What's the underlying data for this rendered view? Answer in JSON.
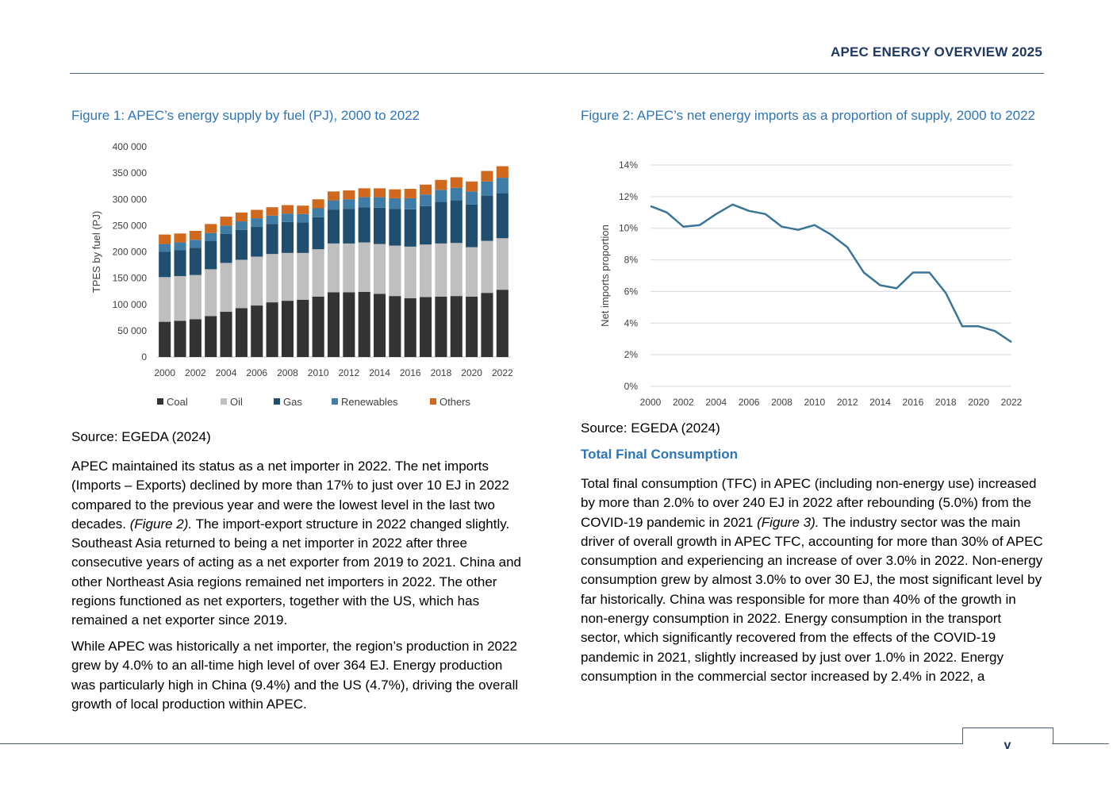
{
  "header": {
    "title": "APEC ENERGY OVERVIEW 2025"
  },
  "figure1": {
    "caption": "Figure 1: APEC’s energy supply by fuel (PJ), 2000 to 2022",
    "source": "Source: EGEDA (2024)"
  },
  "figure2": {
    "caption": "Figure 2: APEC’s net energy imports as a proportion of supply, 2000 to 2022",
    "source": "Source: EGEDA (2024)"
  },
  "left_column": {
    "paragraph1": "APEC maintained its status as a net importer in 2022. The net imports (Imports – Exports) declined by more than 17% to just over 10 EJ in 2022 compared to the previous year and were the lowest level in the last two decades.",
    "paragraph1_ref": "(Figure 2).",
    "paragraph1_rest": "The import-export structure in 2022 changed slightly. Southeast Asia returned to being a net importer in 2022 after three consecutive years of acting as a net exporter from 2019 to 2021. China and other Northeast Asia regions remained net importers in 2022. The other regions functioned as net exporters, together with the US, which has remained a net exporter since 2019.",
    "paragraph2": "While APEC was historically a net importer, the region’s production in 2022 grew by 4.0% to an all-time high level of over 364 EJ. Energy production was particularly high in China (9.4%) and the US (4.7%), driving the overall growth of local production within APEC."
  },
  "right_column": {
    "heading": "Total Final Consumption",
    "paragraph1": "Total final consumption (TFC) in APEC (including non-energy use) increased by more than 2.0% to over 240 EJ in 2022 after rebounding (5.0%) from the COVID-19 pandemic in 2021",
    "paragraph1_ref": "(Figure 3).",
    "paragraph1_rest": "The industry sector was the main driver of overall growth in APEC TFC, accounting for more than 30% of APEC consumption and experiencing an increase of over 3.0% in 2022. Non-energy consumption grew by almost 3.0% to over 30 EJ, the most significant level by far historically. China was responsible for more than 40% of the growth in non-energy consumption in 2022. Energy consumption in the transport sector, which significantly recovered from the effects of the COVID-19 pandemic in 2021, slightly increased by just over 1.0% in 2022. Energy consumption in the commercial sector increased by 2.4% in 2022, a"
  },
  "footer": {
    "page_number": "v"
  },
  "chart_data": [
    {
      "type": "bar",
      "stacked": true,
      "title": "",
      "xlabel": "",
      "ylabel": "TPES by fuel (PJ)",
      "ylim": [
        0,
        400000
      ],
      "yticks": [
        0,
        50000,
        100000,
        150000,
        200000,
        250000,
        300000,
        350000,
        400000
      ],
      "ytick_labels": [
        "0",
        "50 000",
        "100 000",
        "150 000",
        "200 000",
        "250 000",
        "300 000",
        "350 000",
        "400 000"
      ],
      "categories": [
        "2000",
        "2001",
        "2002",
        "2003",
        "2004",
        "2005",
        "2006",
        "2007",
        "2008",
        "2009",
        "2010",
        "2011",
        "2012",
        "2013",
        "2014",
        "2015",
        "2016",
        "2017",
        "2018",
        "2019",
        "2020",
        "2021",
        "2022"
      ],
      "xtick_labels": [
        "2000",
        "2002",
        "2004",
        "2006",
        "2008",
        "2010",
        "2012",
        "2014",
        "2016",
        "2018",
        "2020",
        "2022"
      ],
      "legend_position": "bottom",
      "grid": false,
      "series": [
        {
          "name": "Coal",
          "color": "#333333",
          "values": [
            67000,
            69000,
            72000,
            78000,
            86000,
            93000,
            98000,
            104000,
            107000,
            109000,
            115000,
            123000,
            123000,
            124000,
            120000,
            116000,
            112000,
            114000,
            115000,
            116000,
            115000,
            122000,
            128000
          ]
        },
        {
          "name": "Oil",
          "color": "#bfbfbf",
          "values": [
            85000,
            85000,
            84000,
            89000,
            93000,
            92000,
            93000,
            92000,
            91000,
            89000,
            90000,
            93000,
            93000,
            94000,
            95000,
            96000,
            98000,
            100000,
            101000,
            101000,
            94000,
            99000,
            98000
          ]
        },
        {
          "name": "Gas",
          "color": "#1f4e6e",
          "values": [
            48000,
            49000,
            52000,
            54000,
            55000,
            57000,
            57000,
            57000,
            59000,
            58000,
            61000,
            64000,
            66000,
            67000,
            69000,
            70000,
            71000,
            73000,
            79000,
            81000,
            81000,
            86000,
            86000
          ]
        },
        {
          "name": "Renewables",
          "color": "#3f7ca6",
          "values": [
            15000,
            15000,
            15000,
            15000,
            16000,
            16000,
            16000,
            16000,
            16000,
            16000,
            17000,
            18000,
            18000,
            19000,
            20000,
            20000,
            21000,
            22000,
            23000,
            24000,
            25000,
            27000,
            29000
          ]
        },
        {
          "name": "Others",
          "color": "#d0681e",
          "values": [
            18000,
            17000,
            17000,
            17000,
            17000,
            17000,
            16000,
            16000,
            16000,
            16000,
            17000,
            17000,
            17000,
            17000,
            17000,
            17000,
            18000,
            19000,
            19000,
            20000,
            19000,
            20000,
            22000
          ]
        }
      ]
    },
    {
      "type": "line",
      "title": "",
      "xlabel": "",
      "ylabel": "Net imports proportion",
      "ylim": [
        0,
        0.14
      ],
      "yticks": [
        0,
        0.02,
        0.04,
        0.06,
        0.08,
        0.1,
        0.12,
        0.14
      ],
      "ytick_labels": [
        "0%",
        "2%",
        "4%",
        "6%",
        "8%",
        "10%",
        "12%",
        "14%"
      ],
      "x": [
        "2000",
        "2001",
        "2002",
        "2003",
        "2004",
        "2005",
        "2006",
        "2007",
        "2008",
        "2009",
        "2010",
        "2011",
        "2012",
        "2013",
        "2014",
        "2015",
        "2016",
        "2017",
        "2018",
        "2019",
        "2020",
        "2021",
        "2022"
      ],
      "xtick_labels": [
        "2000",
        "2002",
        "2004",
        "2006",
        "2008",
        "2010",
        "2012",
        "2014",
        "2016",
        "2018",
        "2020",
        "2022"
      ],
      "grid": true,
      "series": [
        {
          "color": "#3a7597",
          "values": [
            0.114,
            0.11,
            0.101,
            0.102,
            0.109,
            0.115,
            0.111,
            0.109,
            0.101,
            0.099,
            0.102,
            0.096,
            0.088,
            0.072,
            0.064,
            0.062,
            0.072,
            0.072,
            0.059,
            0.038,
            0.038,
            0.035,
            0.028
          ]
        }
      ]
    }
  ]
}
